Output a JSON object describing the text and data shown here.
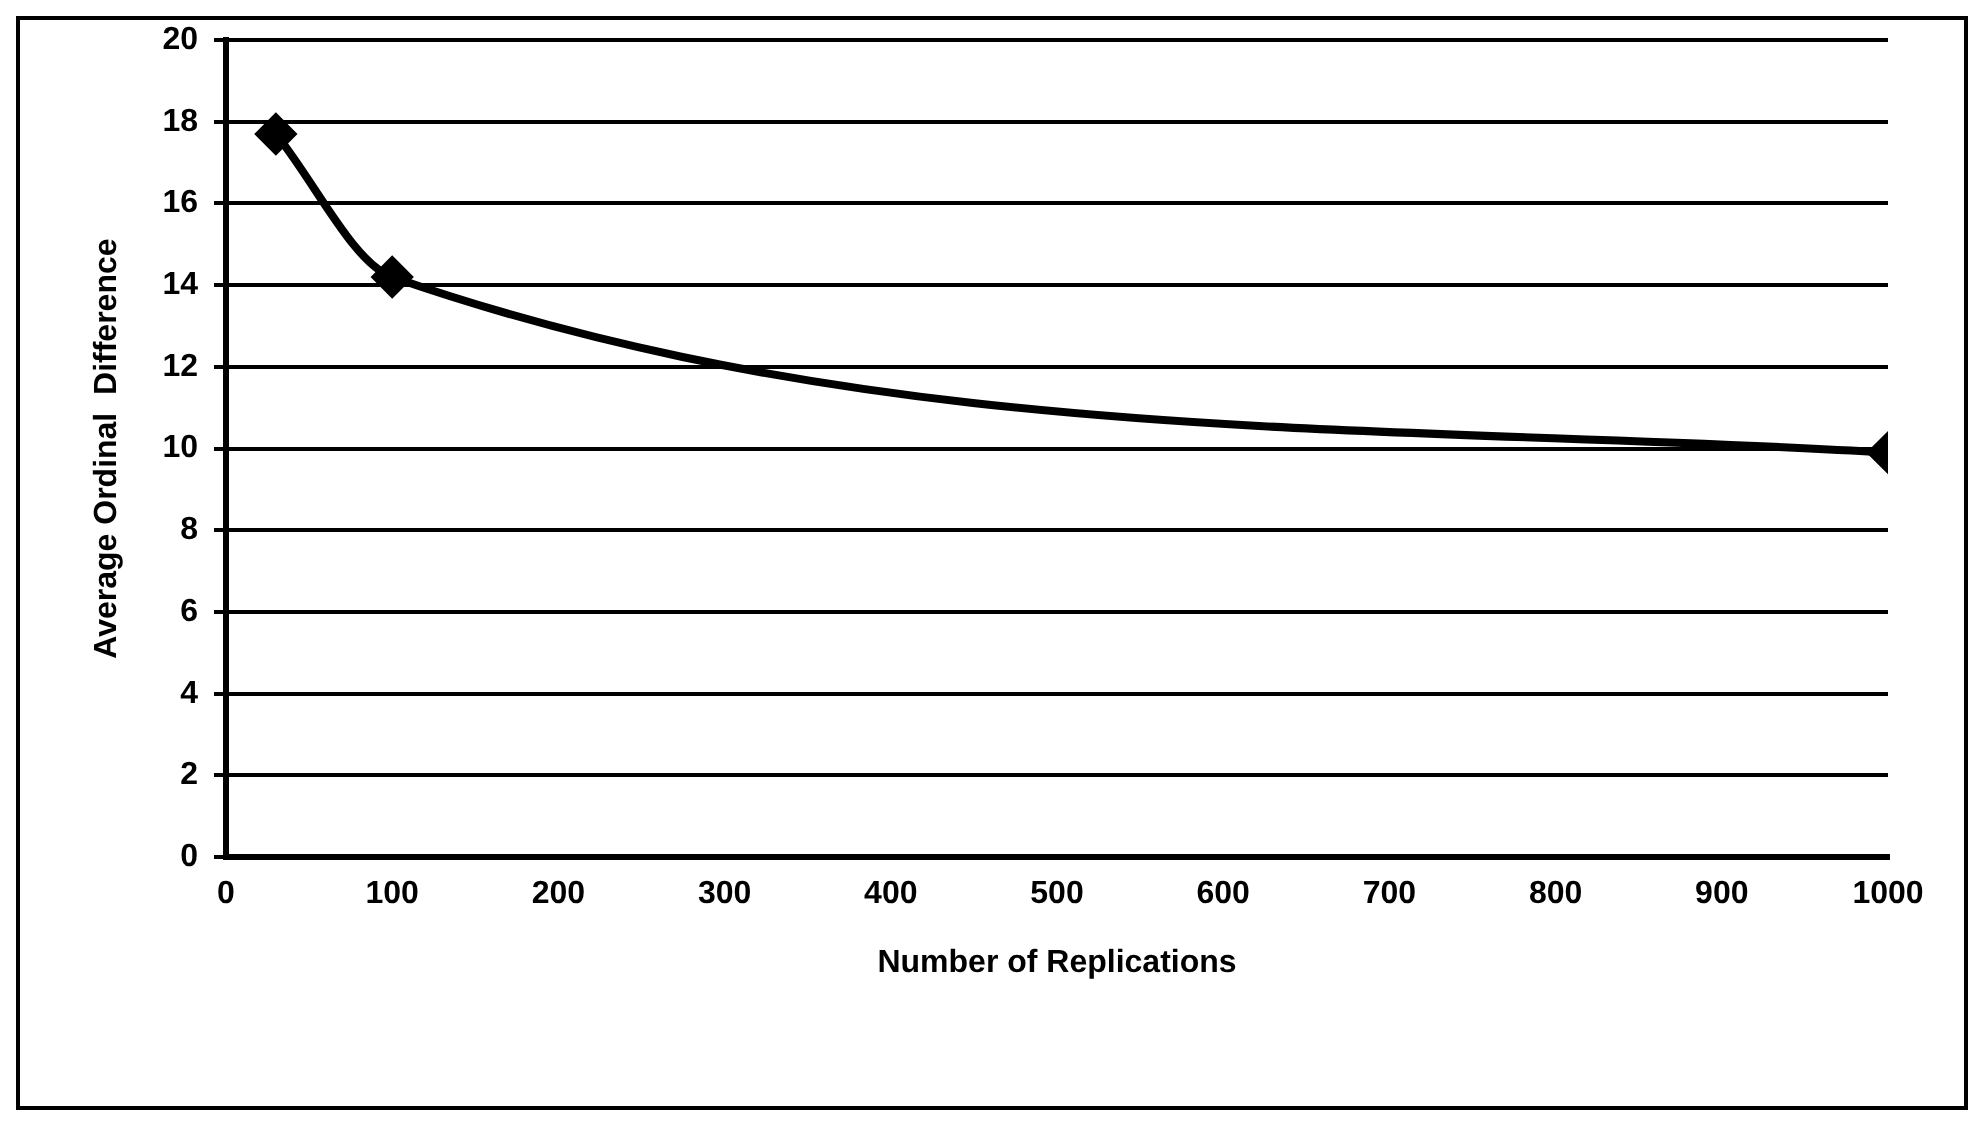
{
  "chart_data": {
    "type": "line",
    "xlabel": "Number of Replications",
    "ylabel": "Average Ordinal  Difference",
    "x": [
      30,
      100,
      1000
    ],
    "series": [
      {
        "color": "#000000",
        "values": [
          17.7,
          14.2,
          9.9
        ]
      }
    ],
    "xlim": [
      0,
      1000
    ],
    "xticks": [
      0,
      100,
      200,
      300,
      400,
      500,
      600,
      700,
      800,
      900,
      1000
    ],
    "ylim": [
      0,
      20
    ],
    "yticks": [
      0,
      2,
      4,
      6,
      8,
      10,
      12,
      14,
      16,
      18,
      20
    ],
    "grid": "y",
    "legend": false,
    "marker": "diamond",
    "line_style": "solid"
  }
}
